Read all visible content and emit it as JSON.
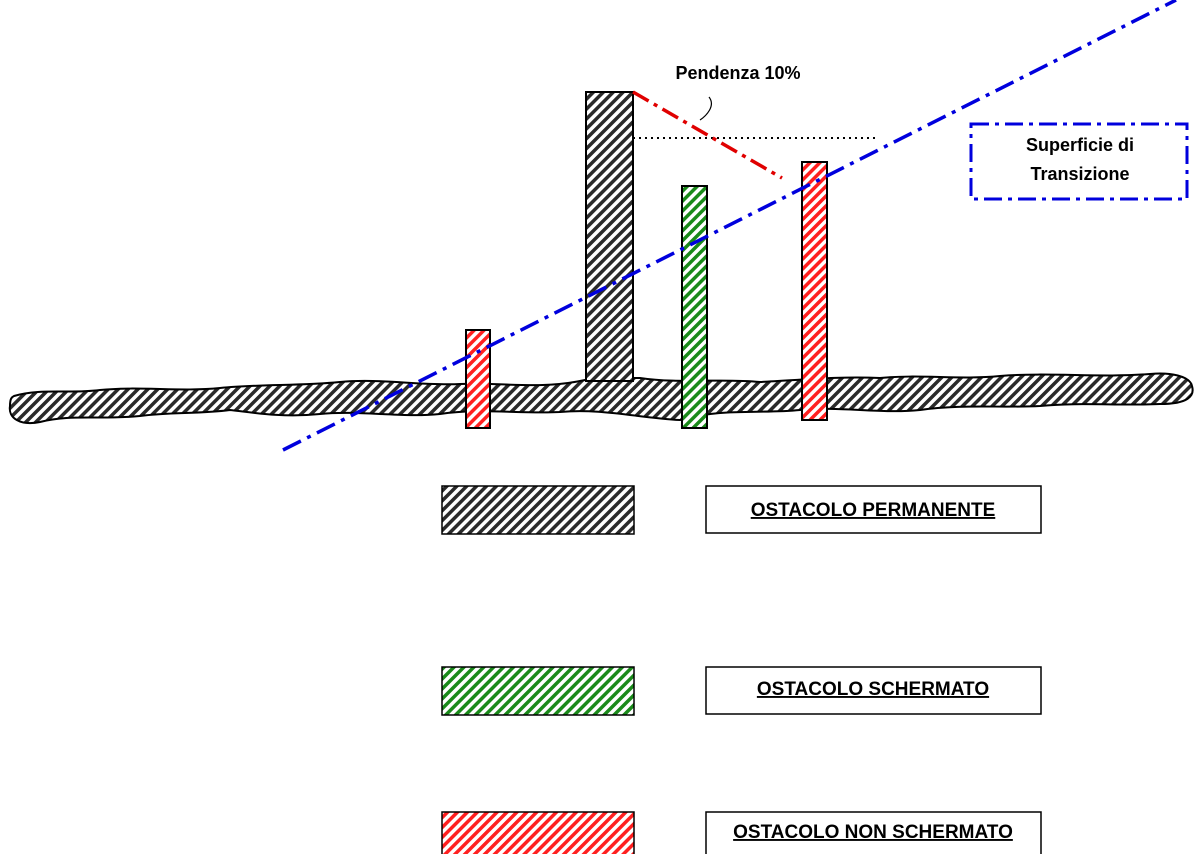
{
  "annotations": {
    "slope": "Pendenza  10%",
    "surface_line1": "Superficie di",
    "surface_line2": "Transizione"
  },
  "legend": [
    {
      "label": "OSTACOLO PERMANENTE",
      "color": "#2a2a2a",
      "name": "permanent"
    },
    {
      "label": "OSTACOLO SCHERMATO",
      "color": "#1a8a1a",
      "name": "shielded"
    },
    {
      "label": "OSTACOLO NON SCHERMATO",
      "color": "#ff2020",
      "name": "unshielded"
    }
  ],
  "colors": {
    "ground": "#2a2a2a",
    "transition_surface": "#0000dd",
    "slope_line": "#e00000",
    "reference_line": "#000000"
  }
}
